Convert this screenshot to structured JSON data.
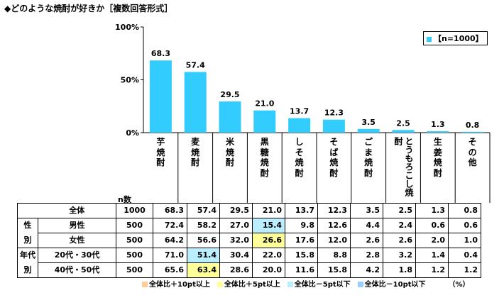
{
  "title": "◆どのような焼酎が好きか［複数回答形式］",
  "legend_label": "【n=1000】",
  "n_header": "n数",
  "unit_label": "（%）",
  "colors": {
    "bar": "#33ccff",
    "plus10": "#ffcc99",
    "plus5": "#ffff99",
    "minus5": "#bbeeff",
    "minus10": "#99ccff"
  },
  "chart_data": {
    "type": "bar",
    "categories": [
      "芋焼酎",
      "麦焼酎",
      "米焼酎",
      "黒糖焼酎",
      "しそ焼酎",
      "そば焼酎",
      "ごま焼酎",
      "とうもろこし焼酎",
      "生姜焼酎",
      "その他"
    ],
    "values": [
      68.3,
      57.4,
      29.5,
      21.0,
      13.7,
      12.3,
      3.5,
      2.5,
      1.3,
      0.8
    ],
    "value_labels": [
      "68.3",
      "57.4",
      "29.5",
      "21.0",
      "13.7",
      "12.3",
      "3.5",
      "2.5",
      "1.3",
      "0.8"
    ],
    "yticks": [
      "100%",
      "50%",
      "0%"
    ],
    "ylim": [
      0,
      100
    ],
    "legend": "top-right"
  },
  "table": {
    "rows": [
      {
        "group": "",
        "label": "全体",
        "n": "1000",
        "values": [
          "68.3",
          "57.4",
          "29.5",
          "21.0",
          "13.7",
          "12.3",
          "3.5",
          "2.5",
          "1.3",
          "0.8"
        ],
        "highlight": {}
      },
      {
        "group": "性",
        "label": "男性",
        "n": "500",
        "values": [
          "72.4",
          "58.2",
          "27.0",
          "15.4",
          "9.8",
          "12.6",
          "4.4",
          "2.4",
          "0.6",
          "0.6"
        ],
        "highlight": {
          "3": "minus5"
        }
      },
      {
        "group": "別",
        "label": "女性",
        "n": "500",
        "values": [
          "64.2",
          "56.6",
          "32.0",
          "26.6",
          "17.6",
          "12.0",
          "2.6",
          "2.6",
          "2.0",
          "1.0"
        ],
        "highlight": {
          "3": "plus5"
        }
      },
      {
        "group": "年代",
        "label": "20代・30代",
        "n": "500",
        "values": [
          "71.0",
          "51.4",
          "30.4",
          "22.0",
          "15.8",
          "8.8",
          "2.8",
          "3.2",
          "1.4",
          "0.4"
        ],
        "highlight": {
          "1": "minus5"
        }
      },
      {
        "group": "別",
        "label": "40代・50代",
        "n": "500",
        "values": [
          "65.6",
          "63.4",
          "28.6",
          "20.0",
          "11.6",
          "15.8",
          "4.2",
          "1.8",
          "1.2",
          "1.2"
        ],
        "highlight": {
          "1": "plus5"
        }
      }
    ]
  },
  "footer_legend": [
    {
      "key": "plus10",
      "label": "全体比＋10pt以上"
    },
    {
      "key": "plus5",
      "label": "全体比＋5pt以上"
    },
    {
      "key": "minus5",
      "label": "全体比－5pt以下"
    },
    {
      "key": "minus10",
      "label": "全体比－10pt以下"
    }
  ]
}
